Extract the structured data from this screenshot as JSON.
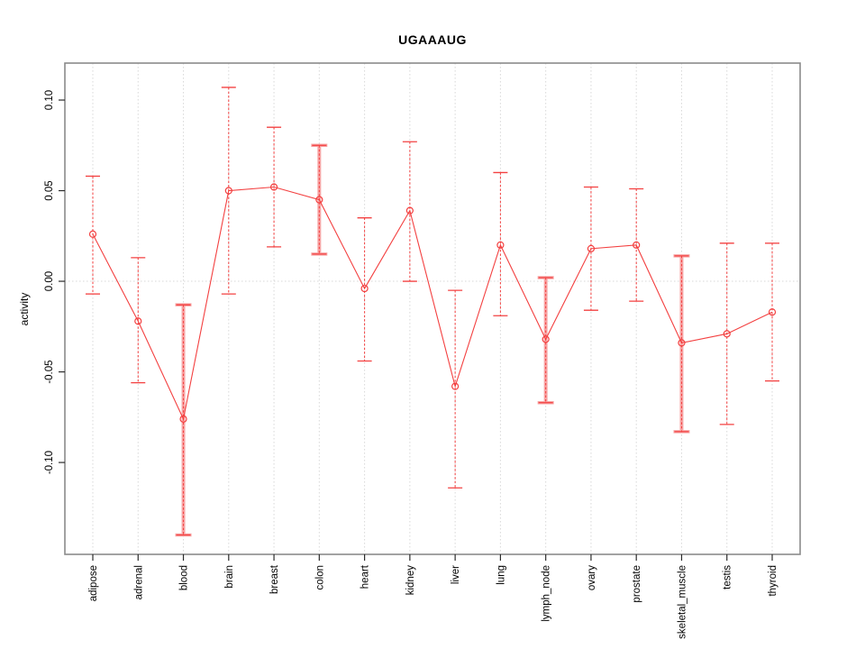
{
  "page": {
    "background": "#ffffff"
  },
  "chart_data": {
    "type": "line",
    "title": "UGAAAUG",
    "xlabel": "",
    "ylabel": "activity",
    "categories": [
      "adipose",
      "adrenal",
      "blood",
      "brain",
      "breast",
      "colon",
      "heart",
      "kidney",
      "liver",
      "lung",
      "lymph_node",
      "ovary",
      "prostate",
      "skeletal_muscle",
      "testis",
      "thyroid"
    ],
    "series": [
      {
        "name": "activity",
        "values": [
          0.026,
          -0.022,
          -0.076,
          0.05,
          0.052,
          0.045,
          -0.004,
          0.039,
          -0.058,
          0.02,
          -0.032,
          0.018,
          0.02,
          -0.034,
          -0.029,
          -0.017
        ],
        "error_low": [
          -0.007,
          -0.056,
          -0.14,
          -0.007,
          0.019,
          0.015,
          -0.044,
          0.0,
          -0.114,
          -0.019,
          -0.067,
          -0.016,
          -0.011,
          -0.083,
          -0.079,
          -0.055
        ],
        "error_high": [
          0.058,
          0.013,
          -0.013,
          0.107,
          0.085,
          0.075,
          0.035,
          0.077,
          -0.005,
          0.06,
          0.002,
          0.052,
          0.051,
          0.014,
          0.021,
          0.021
        ]
      }
    ],
    "emphasized_error_bars": [
      "blood",
      "colon",
      "lymph_node",
      "skeletal_muscle"
    ],
    "y_ticks": [
      "0.10",
      "0.05",
      "0.00",
      "-0.05",
      "-0.10"
    ],
    "y_tick_values": [
      0.1,
      0.05,
      0.0,
      -0.05,
      -0.1
    ],
    "ylim": [
      -0.1507,
      0.1204
    ],
    "grid": {
      "vertical_per_category": true,
      "zero_line_dotted": true
    },
    "legend": "none",
    "point_marker": "open-circle",
    "colors": {
      "series": "#f34040",
      "error_emphasis": "#f7a6a6",
      "grid": "#d8d8d8",
      "axis_box": "#8a8a8a",
      "tick": "#2b2b2b",
      "text": "#000000",
      "background": "#ffffff"
    }
  }
}
